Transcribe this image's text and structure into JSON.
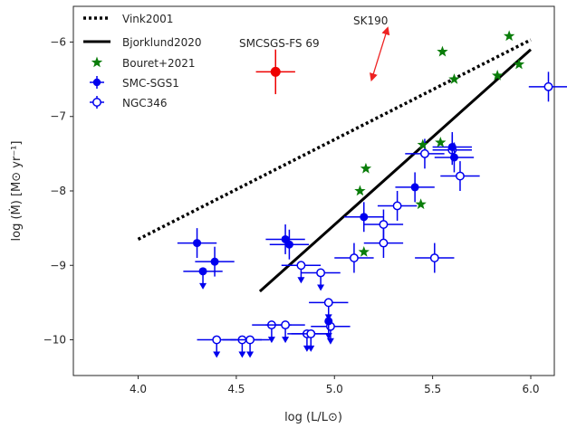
{
  "chart_data": {
    "type": "scatter",
    "xlabel": "log (L/L⊙)",
    "ylabel": "log (Ṁ) [M⊙ yr⁻¹]",
    "xlim": [
      3.67,
      6.12
    ],
    "ylim": [
      -10.48,
      -5.52
    ],
    "xticks": [
      4.0,
      4.5,
      5.0,
      5.5,
      6.0
    ],
    "xtick_labels": [
      "4.0",
      "4.5",
      "5.0",
      "5.5",
      "6.0"
    ],
    "yticks": [
      -6,
      -7,
      -8,
      -9,
      -10
    ],
    "ytick_labels": [
      "−6",
      "−7",
      "−8",
      "−9",
      "−10"
    ],
    "grid": false,
    "legend_position": "top-left",
    "legend": [
      {
        "label": "Vink2001",
        "marker": "dotted-line"
      },
      {
        "label": "Bjorklund2020",
        "marker": "solid-line"
      },
      {
        "label": "Bouret+2021",
        "marker": "star"
      },
      {
        "label": "SMC-SGS1",
        "marker": "filled-circle-errorbar"
      },
      {
        "label": "NGC346",
        "marker": "open-circle-errorbar"
      }
    ],
    "colors": {
      "vink": "#000000",
      "bjorklund": "#000000",
      "bouret": "#0a7d0a",
      "smc": "#0000ee",
      "ngc": "#0000ee",
      "special": "#ee0000",
      "arrow": "#ee2222"
    },
    "lines": [
      {
        "name": "Vink2001",
        "style": "dotted",
        "x": [
          4.0,
          6.0
        ],
        "y": [
          -8.65,
          -5.97
        ]
      },
      {
        "name": "Bjorklund2020",
        "style": "solid",
        "x": [
          4.62,
          6.0
        ],
        "y": [
          -9.35,
          -6.1
        ]
      }
    ],
    "bouret": {
      "x": [
        5.89,
        5.55,
        5.61,
        5.94,
        5.83,
        5.16,
        5.13,
        5.54,
        5.45,
        5.44,
        5.15
      ],
      "y": [
        -5.92,
        -6.13,
        -6.5,
        -6.3,
        -6.45,
        -7.7,
        -8.0,
        -7.35,
        -7.38,
        -8.18,
        -8.82
      ]
    },
    "smc_sgs1": {
      "points": [
        {
          "x": 4.3,
          "y": -8.7,
          "xerr": 0.1,
          "yerr": 0.2,
          "upper": false
        },
        {
          "x": 4.39,
          "y": -8.95,
          "xerr": 0.1,
          "yerr": 0.2,
          "upper": false
        },
        {
          "x": 4.33,
          "y": -9.08,
          "xerr": 0.1,
          "yerr": 0.0,
          "upper": true
        },
        {
          "x": 4.75,
          "y": -8.65,
          "xerr": 0.1,
          "yerr": 0.2,
          "upper": false
        },
        {
          "x": 4.77,
          "y": -8.72,
          "xerr": 0.1,
          "yerr": 0.2,
          "upper": false
        },
        {
          "x": 5.15,
          "y": -8.35,
          "xerr": 0.1,
          "yerr": 0.2,
          "upper": false
        },
        {
          "x": 5.41,
          "y": -7.95,
          "xerr": 0.1,
          "yerr": 0.2,
          "upper": false
        },
        {
          "x": 5.6,
          "y": -7.41,
          "xerr": 0.1,
          "yerr": 0.2,
          "upper": false
        },
        {
          "x": 5.61,
          "y": -7.55,
          "xerr": 0.1,
          "yerr": 0.2,
          "upper": false
        },
        {
          "x": 4.97,
          "y": -9.75,
          "xerr": 0.0,
          "yerr": 0.0,
          "upper": true
        }
      ]
    },
    "ngc346": {
      "points": [
        {
          "x": 4.4,
          "y": -10.0,
          "upper": true
        },
        {
          "x": 4.53,
          "y": -10.0,
          "upper": true
        },
        {
          "x": 4.57,
          "y": -10.0,
          "upper": true
        },
        {
          "x": 4.68,
          "y": -9.8,
          "upper": true
        },
        {
          "x": 4.75,
          "y": -9.8,
          "upper": true
        },
        {
          "x": 4.86,
          "y": -9.92,
          "upper": true
        },
        {
          "x": 4.88,
          "y": -9.92,
          "upper": true
        },
        {
          "x": 4.97,
          "y": -9.5,
          "upper": true
        },
        {
          "x": 4.98,
          "y": -9.82,
          "upper": true
        },
        {
          "x": 4.83,
          "y": -9.0,
          "upper": true
        },
        {
          "x": 4.93,
          "y": -9.1,
          "upper": true
        },
        {
          "x": 5.1,
          "y": -8.9,
          "upper": false
        },
        {
          "x": 5.25,
          "y": -8.7,
          "upper": false
        },
        {
          "x": 5.25,
          "y": -8.45,
          "upper": false
        },
        {
          "x": 5.32,
          "y": -8.2,
          "upper": false
        },
        {
          "x": 5.51,
          "y": -8.9,
          "upper": false
        },
        {
          "x": 5.46,
          "y": -7.5,
          "upper": false
        },
        {
          "x": 5.64,
          "y": -7.8,
          "upper": false
        },
        {
          "x": 5.6,
          "y": -7.45,
          "upper": false
        },
        {
          "x": 6.09,
          "y": -6.6,
          "upper": false
        }
      ]
    },
    "special_point": {
      "label": "SMCSGS-FS 69",
      "x": 4.7,
      "y": -6.4,
      "xerr": 0.1,
      "yerr": 0.3
    },
    "annotation": {
      "label": "SK190",
      "arrow_from": [
        5.19,
        -6.5
      ],
      "arrow_to": [
        5.27,
        -5.82
      ]
    }
  }
}
